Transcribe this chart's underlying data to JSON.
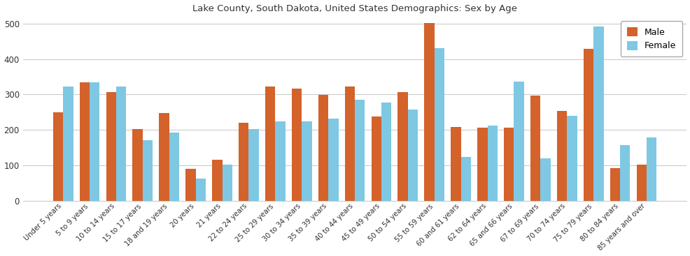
{
  "title": "Lake County, South Dakota, United States Demographics: Sex by Age",
  "categories": [
    "Under 5 years",
    "5 to 9 years",
    "10 to 14 years",
    "15 to 17 years",
    "18 and 19 years",
    "20 years",
    "21 years",
    "22 to 24 years",
    "25 to 29 years",
    "30 to 34 years",
    "35 to 39 years",
    "40 to 44 years",
    "45 to 49 years",
    "50 to 54 years",
    "55 to 59 years",
    "60 and 61 years",
    "62 to 64 years",
    "65 and 66 years",
    "67 to 69 years",
    "70 to 74 years",
    "75 to 79 years",
    "80 to 84 years",
    "85 years and over"
  ],
  "male": [
    250,
    335,
    307,
    203,
    248,
    90,
    115,
    220,
    322,
    316,
    298,
    322,
    238,
    307,
    502,
    209,
    207,
    207,
    296,
    253,
    430,
    92,
    102
  ],
  "female": [
    322,
    335,
    323,
    170,
    193,
    62,
    101,
    202,
    224,
    224,
    232,
    285,
    277,
    257,
    431,
    124,
    212,
    336,
    120,
    240,
    492,
    157,
    178
  ],
  "male_color": "#d4622b",
  "female_color": "#7ec8e3",
  "male_label": "Male",
  "female_label": "Female",
  "ylim": [
    0,
    520
  ],
  "yticks": [
    0,
    100,
    200,
    300,
    400,
    500
  ],
  "figsize": [
    9.87,
    3.67
  ],
  "dpi": 100
}
